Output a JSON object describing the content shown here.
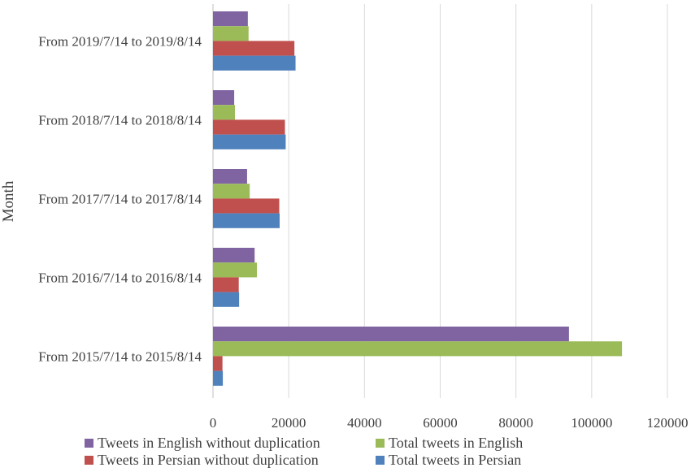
{
  "chart_data": {
    "type": "bar",
    "orientation": "horizontal",
    "ylabel": "Month",
    "xlabel": "",
    "xlim": [
      0,
      120000
    ],
    "xticks": [
      0,
      20000,
      40000,
      60000,
      80000,
      100000,
      120000
    ],
    "grid": "vertical",
    "legend_position": "bottom",
    "categories": [
      "From 2019/7/14 to 2019/8/14",
      "From 2018/7/14 to 2018/8/14",
      "From 2017/7/14 to 2017/8/14",
      "From 2016/7/14 to 2016/8/14",
      "From 2015/7/14 to 2015/8/14"
    ],
    "series": [
      {
        "name": "Tweets in English without duplication",
        "color": "#8064a2",
        "values": [
          9200,
          5600,
          9000,
          11000,
          94000
        ]
      },
      {
        "name": "Total tweets in English",
        "color": "#9bbb59",
        "values": [
          9400,
          5800,
          9700,
          11600,
          108000
        ]
      },
      {
        "name": "Tweets in Persian without duplication",
        "color": "#c0504d",
        "values": [
          21500,
          19000,
          17500,
          6800,
          2500
        ]
      },
      {
        "name": "Total tweets in Persian",
        "color": "#4f81bd",
        "values": [
          21800,
          19200,
          17600,
          6900,
          2600
        ]
      }
    ]
  }
}
